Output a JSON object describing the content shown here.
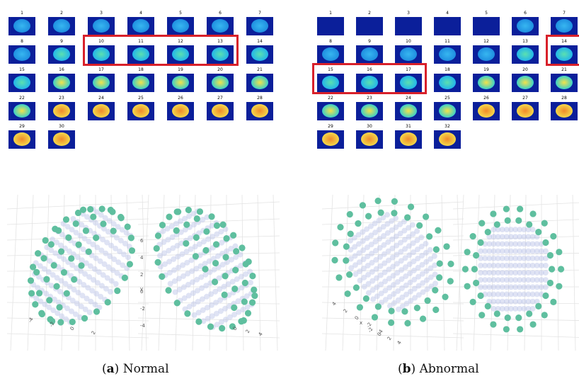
{
  "panels": [
    {
      "id": "a",
      "caption_letter": "a",
      "caption_text": " Normal",
      "slices": [
        "1",
        "2",
        "3",
        "4",
        "5",
        "6",
        "7",
        "8",
        "9",
        "10",
        "11",
        "12",
        "13",
        "14",
        "15",
        "16",
        "17",
        "18",
        "19",
        "20",
        "21",
        "22",
        "23",
        "24",
        "25",
        "26",
        "27",
        "28",
        "29",
        "30"
      ],
      "highlighted": [
        [
          "10",
          "11",
          "12",
          "13"
        ]
      ]
    },
    {
      "id": "b",
      "caption_letter": "b",
      "caption_text": " Abnormal",
      "slices": [
        "1",
        "2",
        "3",
        "4",
        "5",
        "6",
        "7",
        "8",
        "9",
        "10",
        "11",
        "12",
        "13",
        "14",
        "15",
        "16",
        "17",
        "18",
        "19",
        "20",
        "21",
        "22",
        "23",
        "24",
        "25",
        "26",
        "27",
        "28",
        "29",
        "30",
        "31",
        "32"
      ],
      "highlighted": [
        [
          "14"
        ],
        [
          "15",
          "16",
          "17"
        ]
      ]
    }
  ],
  "axis_ticks": {
    "a_left": [
      "-4",
      "-2",
      "0",
      "2"
    ],
    "a_right_y": [
      "6",
      "4",
      "2",
      "0",
      "-2",
      "-4"
    ],
    "a_right_bottom": [
      "0",
      "2",
      "4"
    ],
    "b_left": [
      "4",
      "2",
      "0",
      "-2",
      "-4"
    ],
    "b_left_bottom": [
      "-2",
      "0",
      "2",
      "4"
    ]
  },
  "axis_labels": {
    "a_y": "y",
    "b_x": "x"
  },
  "colors": {
    "highlight": "#d8202a",
    "point": "#5fbf9f",
    "cloud": "#b9c2e6",
    "slice_bg": "#0b1f9a"
  }
}
